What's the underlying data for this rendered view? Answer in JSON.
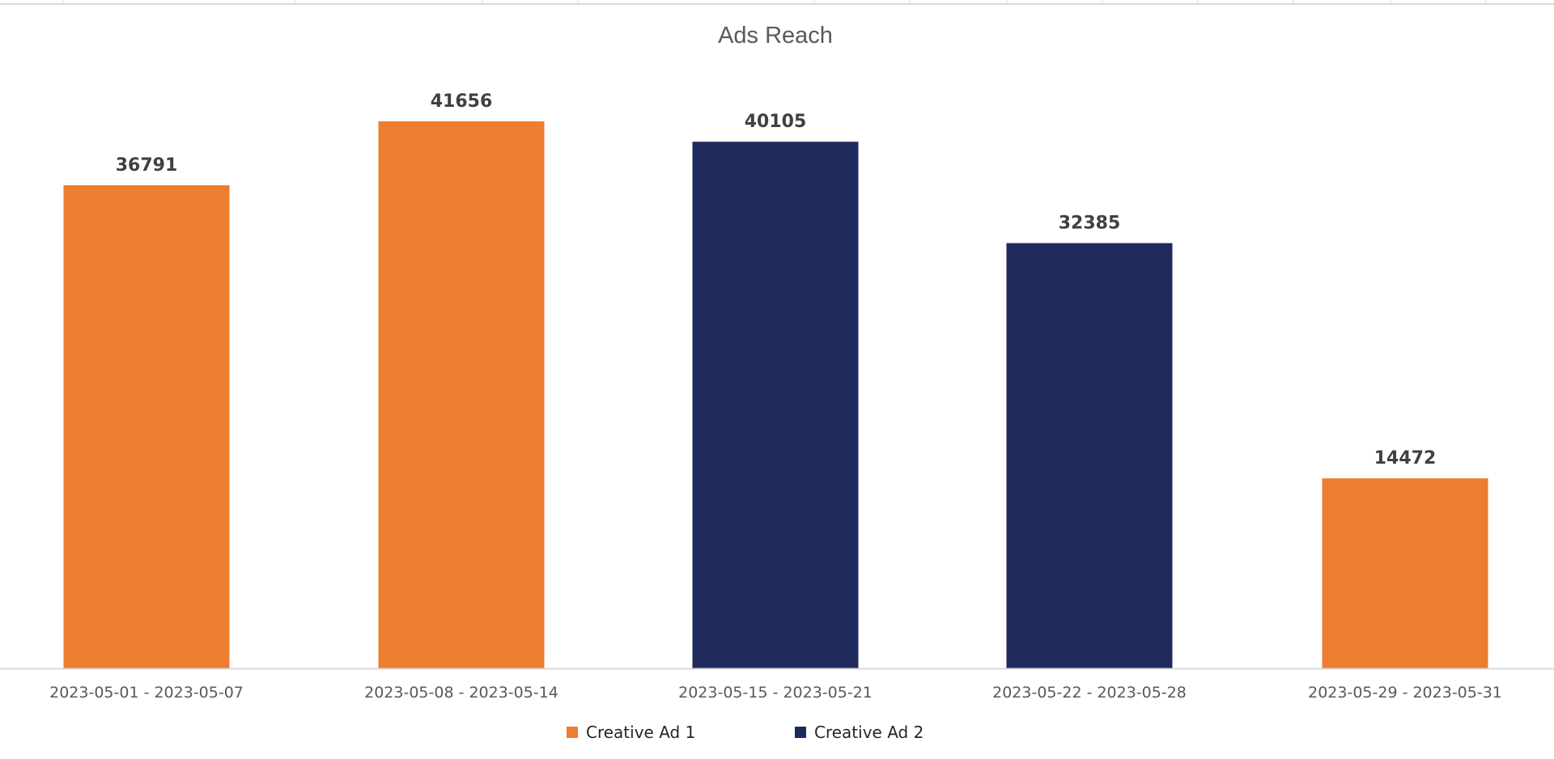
{
  "chart_data": {
    "type": "bar",
    "title": "Ads Reach",
    "xlabel": "",
    "ylabel": "",
    "categories": [
      "2023-05-01 - 2023-05-07",
      "2023-05-08 - 2023-05-14",
      "2023-05-15 - 2023-05-21",
      "2023-05-22 - 2023-05-28",
      "2023-05-29 - 2023-05-31"
    ],
    "values": [
      36791,
      41656,
      40105,
      32385,
      14472
    ],
    "bar_series": [
      "Creative Ad 1",
      "Creative Ad 1",
      "Creative Ad 2",
      "Creative Ad 2",
      "Creative Ad 1"
    ],
    "series": [
      {
        "name": "Creative Ad 1",
        "color": "#ED7D31"
      },
      {
        "name": "Creative Ad 2",
        "color": "#1F2A5C"
      }
    ],
    "ylim": [
      0,
      50000
    ],
    "grid": false,
    "legend_position": "bottom",
    "data_labels": true
  }
}
